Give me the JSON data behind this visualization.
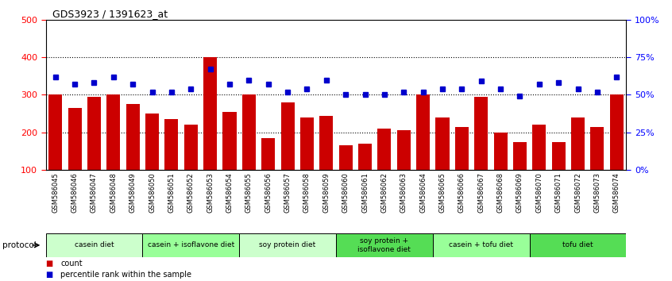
{
  "title": "GDS3923 / 1391623_at",
  "samples": [
    "GSM586045",
    "GSM586046",
    "GSM586047",
    "GSM586048",
    "GSM586049",
    "GSM586050",
    "GSM586051",
    "GSM586052",
    "GSM586053",
    "GSM586054",
    "GSM586055",
    "GSM586056",
    "GSM586057",
    "GSM586058",
    "GSM586059",
    "GSM586060",
    "GSM586061",
    "GSM586062",
    "GSM586063",
    "GSM586064",
    "GSM586065",
    "GSM586066",
    "GSM586067",
    "GSM586068",
    "GSM586069",
    "GSM586070",
    "GSM586071",
    "GSM586072",
    "GSM586073",
    "GSM586074"
  ],
  "counts": [
    300,
    265,
    295,
    300,
    275,
    250,
    235,
    220,
    400,
    255,
    300,
    185,
    280,
    240,
    245,
    165,
    170,
    210,
    205,
    300,
    240,
    215,
    295,
    200,
    175,
    220,
    175,
    240,
    215,
    300
  ],
  "percentile": [
    62,
    57,
    58,
    62,
    57,
    52,
    52,
    54,
    67,
    57,
    60,
    57,
    52,
    54,
    60,
    50,
    50,
    50,
    52,
    52,
    54,
    54,
    59,
    54,
    49,
    57,
    58,
    54,
    52,
    62
  ],
  "bar_color": "#cc0000",
  "dot_color": "#0000cc",
  "ylim_left": [
    100,
    500
  ],
  "ylim_right": [
    0,
    100
  ],
  "yticks_left": [
    100,
    200,
    300,
    400,
    500
  ],
  "yticks_right": [
    0,
    25,
    50,
    75,
    100
  ],
  "ytick_labels_right": [
    "0%",
    "25%",
    "50%",
    "75%",
    "100%"
  ],
  "grid_values": [
    200,
    300,
    400
  ],
  "protocols": [
    {
      "label": "casein diet",
      "start": 0,
      "end": 4,
      "color": "#ccffcc"
    },
    {
      "label": "casein + isoflavone diet",
      "start": 5,
      "end": 9,
      "color": "#99ff99"
    },
    {
      "label": "soy protein diet",
      "start": 10,
      "end": 14,
      "color": "#ccffcc"
    },
    {
      "label": "soy protein +\nisoflavone diet",
      "start": 15,
      "end": 19,
      "color": "#55dd55"
    },
    {
      "label": "casein + tofu diet",
      "start": 20,
      "end": 24,
      "color": "#99ff99"
    },
    {
      "label": "tofu diet",
      "start": 25,
      "end": 29,
      "color": "#55dd55"
    }
  ],
  "bg_color": "#ffffff",
  "spine_color": "#000000"
}
